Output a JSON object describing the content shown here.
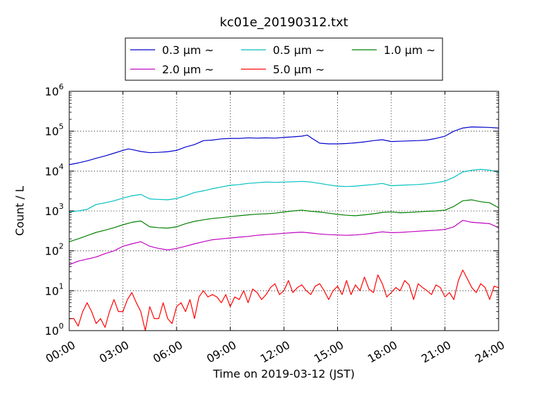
{
  "chart_data": {
    "type": "line",
    "title": "kc01e_20190312.txt",
    "xlabel": "Time on 2019-03-12 (JST)",
    "ylabel": "Count / L",
    "x_range_hours": [
      0,
      24
    ],
    "x_ticks": [
      {
        "h": 0,
        "label": "00:00"
      },
      {
        "h": 3,
        "label": "03:00"
      },
      {
        "h": 6,
        "label": "06:00"
      },
      {
        "h": 9,
        "label": "09:00"
      },
      {
        "h": 12,
        "label": "12:00"
      },
      {
        "h": 15,
        "label": "15:00"
      },
      {
        "h": 18,
        "label": "18:00"
      },
      {
        "h": 21,
        "label": "21:00"
      },
      {
        "h": 24,
        "label": "24:00"
      }
    ],
    "y_scale": "log",
    "y_range": [
      1,
      1000000
    ],
    "y_ticks": [
      {
        "value": 1,
        "base": "10",
        "exp": "0"
      },
      {
        "value": 10,
        "base": "10",
        "exp": "1"
      },
      {
        "value": 100,
        "base": "10",
        "exp": "2"
      },
      {
        "value": 1000,
        "base": "10",
        "exp": "3"
      },
      {
        "value": 10000,
        "base": "10",
        "exp": "4"
      },
      {
        "value": 100000,
        "base": "10",
        "exp": "5"
      },
      {
        "value": 1000000,
        "base": "10",
        "exp": "6"
      }
    ],
    "grid": true,
    "legend_position": "top-center",
    "series": [
      {
        "name": "0.3 μm ~",
        "color": "#0000cc",
        "x": [
          0,
          0.5,
          1,
          1.5,
          2,
          2.5,
          3,
          3.3,
          3.6,
          4,
          4.5,
          5,
          5.5,
          6,
          6.5,
          7,
          7.5,
          8,
          8.5,
          9,
          9.5,
          10,
          10.5,
          11,
          11.5,
          12,
          12.5,
          13,
          13.3,
          13.6,
          14,
          14.5,
          15,
          15.5,
          16,
          16.5,
          17,
          17.5,
          18,
          18.5,
          19,
          19.5,
          20,
          20.5,
          21,
          21.5,
          22,
          22.5,
          23,
          23.5,
          24
        ],
        "y": [
          14500,
          16000,
          18000,
          21000,
          24000,
          28000,
          33000,
          36000,
          34000,
          31000,
          29000,
          29500,
          30500,
          33000,
          40000,
          46000,
          58000,
          60000,
          64000,
          66000,
          66000,
          68000,
          67000,
          68000,
          67000,
          70000,
          72000,
          75000,
          80000,
          65000,
          50000,
          48000,
          48000,
          49000,
          51000,
          54000,
          58000,
          61000,
          55000,
          56000,
          57000,
          58000,
          60000,
          66000,
          75000,
          100000,
          120000,
          128000,
          126000,
          124000,
          120000
        ]
      },
      {
        "name": "0.5 μm ~",
        "color": "#00bfbf",
        "x": [
          0,
          0.5,
          1,
          1.5,
          2,
          2.5,
          3,
          3.5,
          4,
          4.5,
          5,
          5.5,
          6,
          6.5,
          7,
          7.5,
          8,
          8.5,
          9,
          9.5,
          10,
          10.5,
          11,
          11.5,
          12,
          12.5,
          13,
          13.5,
          14,
          14.5,
          15,
          15.5,
          16,
          16.5,
          17,
          17.5,
          18,
          18.5,
          19,
          19.5,
          20,
          20.5,
          21,
          21.5,
          22,
          22.5,
          23,
          23.5,
          24
        ],
        "y": [
          950,
          1000,
          1100,
          1450,
          1600,
          1800,
          2100,
          2400,
          2600,
          2000,
          1950,
          1900,
          2050,
          2400,
          2900,
          3200,
          3600,
          4000,
          4400,
          4600,
          4900,
          5100,
          5300,
          5200,
          5300,
          5400,
          5500,
          5300,
          4900,
          4500,
          4200,
          4100,
          4200,
          4400,
          4600,
          4900,
          4300,
          4400,
          4500,
          4600,
          4800,
          5100,
          5600,
          7000,
          9500,
          10500,
          11000,
          10500,
          9500
        ]
      },
      {
        "name": "1.0 μm ~",
        "color": "#008000",
        "x": [
          0,
          0.5,
          1,
          1.5,
          2,
          2.5,
          3,
          3.5,
          4,
          4.5,
          5,
          5.5,
          6,
          6.5,
          7,
          7.5,
          8,
          8.5,
          9,
          9.5,
          10,
          10.5,
          11,
          11.5,
          12,
          12.5,
          13,
          13.5,
          14,
          14.5,
          15,
          15.5,
          16,
          16.5,
          17,
          17.5,
          18,
          18.5,
          19,
          19.5,
          20,
          20.5,
          21,
          21.5,
          22,
          22.5,
          23,
          23.5,
          24
        ],
        "y": [
          170,
          200,
          240,
          290,
          330,
          380,
          450,
          520,
          560,
          400,
          380,
          370,
          400,
          480,
          550,
          600,
          650,
          680,
          720,
          760,
          800,
          830,
          850,
          880,
          940,
          1000,
          1050,
          980,
          940,
          880,
          820,
          780,
          760,
          800,
          850,
          920,
          950,
          900,
          920,
          950,
          980,
          1000,
          1050,
          1300,
          1800,
          1900,
          1700,
          1600,
          1200
        ]
      },
      {
        "name": "2.0 μm ~",
        "color": "#bf00bf",
        "x": [
          0,
          0.5,
          1,
          1.5,
          2,
          2.5,
          3,
          3.5,
          4,
          4.5,
          5,
          5.5,
          6,
          6.5,
          7,
          7.5,
          8,
          8.5,
          9,
          9.5,
          10,
          10.5,
          11,
          11.5,
          12,
          12.5,
          13,
          13.5,
          14,
          14.5,
          15,
          15.5,
          16,
          16.5,
          17,
          17.5,
          18,
          18.5,
          19,
          19.5,
          20,
          20.5,
          21,
          21.5,
          22,
          22.5,
          23,
          23.5,
          24
        ],
        "y": [
          45,
          55,
          62,
          70,
          85,
          100,
          130,
          150,
          170,
          130,
          115,
          105,
          115,
          130,
          150,
          170,
          190,
          200,
          210,
          220,
          230,
          245,
          255,
          265,
          275,
          285,
          295,
          280,
          265,
          255,
          250,
          245,
          250,
          260,
          280,
          300,
          285,
          290,
          300,
          310,
          320,
          330,
          345,
          400,
          580,
          520,
          500,
          480,
          380
        ]
      },
      {
        "name": "5.0 μm ~",
        "color": "#ff0000",
        "x": [
          0,
          0.25,
          0.5,
          0.75,
          1,
          1.25,
          1.5,
          1.75,
          2,
          2.25,
          2.5,
          2.75,
          3,
          3.25,
          3.5,
          3.75,
          4,
          4.25,
          4.5,
          4.75,
          5,
          5.25,
          5.5,
          5.75,
          6,
          6.25,
          6.5,
          6.75,
          7,
          7.25,
          7.5,
          7.75,
          8,
          8.25,
          8.5,
          8.75,
          9,
          9.25,
          9.5,
          9.75,
          10,
          10.25,
          10.5,
          10.75,
          11,
          11.25,
          11.5,
          11.75,
          12,
          12.25,
          12.5,
          12.75,
          13,
          13.25,
          13.5,
          13.75,
          14,
          14.25,
          14.5,
          14.75,
          15,
          15.25,
          15.5,
          15.75,
          16,
          16.25,
          16.5,
          16.75,
          17,
          17.25,
          17.5,
          17.75,
          18,
          18.25,
          18.5,
          18.75,
          19,
          19.25,
          19.5,
          19.75,
          20,
          20.25,
          20.5,
          20.75,
          21,
          21.25,
          21.5,
          21.75,
          22,
          22.25,
          22.5,
          22.75,
          23,
          23.25,
          23.5,
          23.75,
          24
        ],
        "y": [
          2,
          2,
          1.3,
          3,
          5,
          3,
          1.5,
          2,
          1.2,
          3,
          6,
          3,
          3,
          6,
          9,
          5,
          3,
          1,
          4,
          2,
          2,
          5,
          2,
          1.5,
          4,
          5,
          3,
          6,
          2,
          7,
          10,
          7,
          8,
          7,
          5,
          8,
          4,
          7,
          6,
          10,
          5,
          11,
          9,
          6,
          8,
          12,
          15,
          8,
          10,
          18,
          9,
          12,
          14,
          10,
          8,
          13,
          15,
          10,
          6,
          10,
          13,
          8,
          18,
          8,
          14,
          10,
          22,
          11,
          9,
          25,
          15,
          7,
          9,
          12,
          10,
          18,
          14,
          6,
          15,
          12,
          10,
          8,
          14,
          12,
          7,
          9,
          6,
          18,
          33,
          20,
          12,
          9,
          15,
          12,
          6,
          13,
          12
        ]
      }
    ]
  }
}
